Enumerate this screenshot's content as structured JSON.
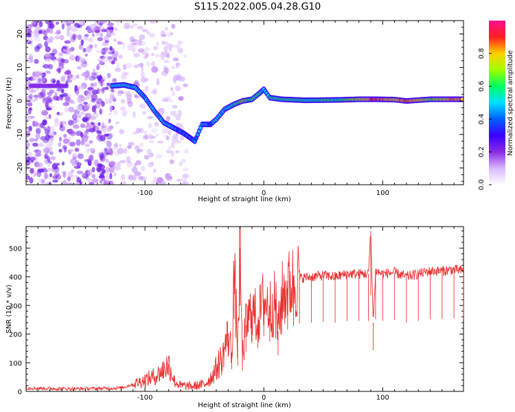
{
  "title": "S115.2022.005.04.28.G10",
  "chart_data": [
    {
      "type": "heatmap",
      "xlabel": "Height of straight line (km)",
      "ylabel": "Frequency (Hz)",
      "xlim": [
        -200,
        168
      ],
      "ylim": [
        -25,
        24
      ],
      "xticks": [
        -100,
        0,
        100
      ],
      "yticks": [
        -20,
        -10,
        0,
        10,
        20
      ],
      "colorbar": {
        "label": "Normalized spectral amplitude",
        "range": [
          0,
          1
        ],
        "ticks": [
          "0.0",
          "0.2",
          "0.4",
          "0.6",
          "0.8"
        ],
        "colors": [
          "#ffffff",
          "#d9b8ff",
          "#8a2be2",
          "#3c00ff",
          "#0060ff",
          "#00e0ff",
          "#00ff60",
          "#a0ff00",
          "#ffd000",
          "#ff2020",
          "#ff1090"
        ]
      },
      "trace": [
        {
          "x": -128,
          "y": 4.5,
          "a": 0.55
        },
        {
          "x": -118,
          "y": 4.8,
          "a": 0.5
        },
        {
          "x": -108,
          "y": 4.0,
          "a": 0.5
        },
        {
          "x": -100,
          "y": 1.0,
          "a": 0.45
        },
        {
          "x": -92,
          "y": -3.0,
          "a": 0.45
        },
        {
          "x": -84,
          "y": -6.5,
          "a": 0.5
        },
        {
          "x": -76,
          "y": -8.0,
          "a": 0.45
        },
        {
          "x": -68,
          "y": -9.5,
          "a": 0.4
        },
        {
          "x": -58,
          "y": -12.0,
          "a": 0.4
        },
        {
          "x": -52,
          "y": -7.0,
          "a": 0.5
        },
        {
          "x": -45,
          "y": -7.0,
          "a": 0.4
        },
        {
          "x": -40,
          "y": -5.5,
          "a": 0.55
        },
        {
          "x": -33,
          "y": -2.5,
          "a": 0.45
        },
        {
          "x": -25,
          "y": -1.0,
          "a": 0.55
        },
        {
          "x": -18,
          "y": 0.0,
          "a": 0.7
        },
        {
          "x": -10,
          "y": 0.5,
          "a": 0.6
        },
        {
          "x": -3,
          "y": 2.5,
          "a": 0.55
        },
        {
          "x": 0,
          "y": 3.5,
          "a": 0.5
        },
        {
          "x": 5,
          "y": 1.0,
          "a": 0.55
        },
        {
          "x": 15,
          "y": 0.5,
          "a": 0.6
        },
        {
          "x": 35,
          "y": 0.2,
          "a": 0.55
        },
        {
          "x": 60,
          "y": 0.3,
          "a": 0.6
        },
        {
          "x": 80,
          "y": 0.5,
          "a": 0.7
        },
        {
          "x": 95,
          "y": 0.5,
          "a": 0.9
        },
        {
          "x": 110,
          "y": 0.4,
          "a": 0.75
        },
        {
          "x": 120,
          "y": 0.0,
          "a": 0.9
        },
        {
          "x": 140,
          "y": 0.5,
          "a": 0.65
        },
        {
          "x": 160,
          "y": 0.5,
          "a": 0.85
        },
        {
          "x": 168,
          "y": 0.5,
          "a": 0.8
        }
      ]
    },
    {
      "type": "line",
      "xlabel": "Height of straight line (km)",
      "ylabel": "SNR (10 * v/v)",
      "xlim": [
        -200,
        168
      ],
      "ylim": [
        0,
        575
      ],
      "xticks": [
        -100,
        0,
        100
      ],
      "yticks": [
        0,
        100,
        200,
        300,
        400,
        500
      ],
      "color": "#e8302e",
      "series": [
        {
          "x": [
            -200,
            -180,
            -160,
            -140,
            -120,
            -110,
            -100,
            -90,
            -85,
            -80,
            -75,
            -70,
            -60,
            -50,
            -45,
            -40,
            -35,
            -30,
            -27,
            -25,
            -22,
            -20,
            -18,
            -15,
            -10,
            -5,
            0,
            5,
            10,
            12,
            15,
            20,
            25,
            30,
            40,
            50,
            60,
            70,
            80,
            88,
            90,
            92,
            94,
            100,
            110,
            120,
            130,
            140,
            150,
            160,
            168
          ],
          "y": [
            12,
            10,
            9,
            10,
            12,
            25,
            40,
            55,
            75,
            95,
            35,
            20,
            18,
            25,
            45,
            80,
            120,
            200,
            130,
            420,
            150,
            500,
            120,
            230,
            280,
            250,
            320,
            290,
            310,
            210,
            330,
            360,
            380,
            395,
            400,
            405,
            400,
            410,
            410,
            410,
            560,
            240,
            420,
            410,
            415,
            400,
            410,
            420,
            420,
            425,
            420
          ]
        }
      ]
    }
  ]
}
